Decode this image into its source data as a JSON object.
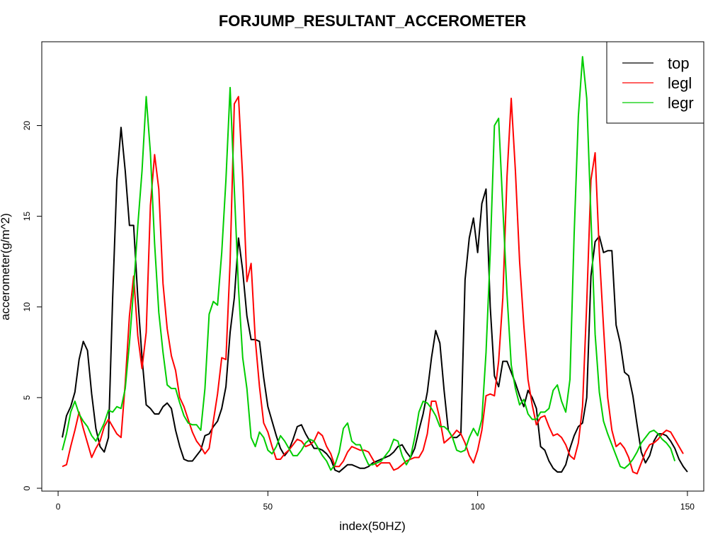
{
  "chart_data": {
    "type": "line",
    "title": "FORJUMP_RESULTANT_ACCEROMETER",
    "xlabel": "index(50HZ)",
    "ylabel": "accerometer(g/m^2)",
    "xlim": [
      1,
      149
    ],
    "ylim": [
      0,
      24
    ],
    "xticks": [
      0,
      50,
      100,
      150
    ],
    "yticks": [
      0,
      5,
      10,
      15,
      20
    ],
    "grid": false,
    "legend": {
      "position": "top-right"
    },
    "x_start": 1,
    "series": [
      {
        "name": "top",
        "color": "#000000",
        "values": [
          2.8,
          4.0,
          4.5,
          5.3,
          7.1,
          8.1,
          7.6,
          5.2,
          3.3,
          2.3,
          2.0,
          2.8,
          10.5,
          17.0,
          19.9,
          17.5,
          14.5,
          14.5,
          10.5,
          7.2,
          4.6,
          4.4,
          4.1,
          4.1,
          4.5,
          4.7,
          4.4,
          3.2,
          2.3,
          1.6,
          1.5,
          1.5,
          1.8,
          2.1,
          2.9,
          3.0,
          3.4,
          3.7,
          4.4,
          5.6,
          8.6,
          10.5,
          13.8,
          12.0,
          9.5,
          8.2,
          8.2,
          8.1,
          6.1,
          4.5,
          3.7,
          2.9,
          2.2,
          1.8,
          2.1,
          2.7,
          3.4,
          3.5,
          3.0,
          2.6,
          2.2,
          2.2,
          2.1,
          1.9,
          1.6,
          1.0,
          0.9,
          1.1,
          1.3,
          1.3,
          1.2,
          1.1,
          1.1,
          1.2,
          1.4,
          1.5,
          1.6,
          1.7,
          1.8,
          2.0,
          2.3,
          2.4,
          2.0,
          1.7,
          2.2,
          3.2,
          4.1,
          5.3,
          7.2,
          8.7,
          8.0,
          5.4,
          3.2,
          2.8,
          2.8,
          3.0,
          11.5,
          13.8,
          14.9,
          13.0,
          15.7,
          16.5,
          10.0,
          6.2,
          5.6,
          7.0,
          7.0,
          6.4,
          5.8,
          5.1,
          4.5,
          5.4,
          5.0,
          4.4,
          2.3,
          2.1,
          1.5,
          1.1,
          0.9,
          0.9,
          1.3,
          2.2,
          2.9,
          3.4,
          3.6,
          5.0,
          11.7,
          13.6,
          13.9,
          13.0,
          13.1,
          13.1,
          9.0,
          8.0,
          6.4,
          6.2,
          5.1,
          3.5,
          2.0,
          1.4,
          1.8,
          2.6,
          3.0,
          3.0,
          2.9,
          2.6,
          2.2,
          1.6,
          1.2,
          0.9
        ]
      },
      {
        "name": "legl",
        "color": "#ff0000",
        "values": [
          1.2,
          1.3,
          2.3,
          3.2,
          4.2,
          3.3,
          2.5,
          1.7,
          2.2,
          2.6,
          3.4,
          3.8,
          3.4,
          3.0,
          2.8,
          5.8,
          9.5,
          11.7,
          8.4,
          6.6,
          8.6,
          15.6,
          18.4,
          16.5,
          11.3,
          8.8,
          7.3,
          6.5,
          5.0,
          4.5,
          3.8,
          3.1,
          2.6,
          2.3,
          1.9,
          2.2,
          3.7,
          5.2,
          7.2,
          7.1,
          12.5,
          21.2,
          21.6,
          17.1,
          11.4,
          12.4,
          8.2,
          5.6,
          3.6,
          3.1,
          2.3,
          1.6,
          1.6,
          1.9,
          2.1,
          2.4,
          2.7,
          2.6,
          2.3,
          2.4,
          2.6,
          3.1,
          2.9,
          2.3,
          1.9,
          1.2,
          1.2,
          1.5,
          2.0,
          2.3,
          2.2,
          2.1,
          2.1,
          2.0,
          1.6,
          1.2,
          1.4,
          1.4,
          1.4,
          1.0,
          1.1,
          1.3,
          1.5,
          1.6,
          1.7,
          1.7,
          2.1,
          3.0,
          4.8,
          4.8,
          3.8,
          2.5,
          2.7,
          2.9,
          3.2,
          3.0,
          2.5,
          1.8,
          1.4,
          2.1,
          3.2,
          5.1,
          5.2,
          5.1,
          7.0,
          10.5,
          17.2,
          21.5,
          17.5,
          12.5,
          9.0,
          6.0,
          4.6,
          3.5,
          3.9,
          4.0,
          3.4,
          2.9,
          3.0,
          2.8,
          2.4,
          1.8,
          1.6,
          2.5,
          4.5,
          10.2,
          17.0,
          18.5,
          13.0,
          8.9,
          5.0,
          3.2,
          2.3,
          2.5,
          2.2,
          1.7,
          0.9,
          0.8,
          1.4,
          2.0,
          2.4,
          2.5,
          2.7,
          3.0,
          3.2,
          3.1,
          2.7,
          2.3,
          1.9
        ]
      },
      {
        "name": "legr",
        "color": "#00cd00",
        "values": [
          2.1,
          3.0,
          4.2,
          4.8,
          4.1,
          3.7,
          3.4,
          2.9,
          2.6,
          3.1,
          3.6,
          4.3,
          4.2,
          4.5,
          4.4,
          5.5,
          8.0,
          11.0,
          14.5,
          17.5,
          21.6,
          18.5,
          13.5,
          9.7,
          7.5,
          5.7,
          5.5,
          5.5,
          4.7,
          4.0,
          3.6,
          3.5,
          3.5,
          3.2,
          5.5,
          9.6,
          10.3,
          10.1,
          13.0,
          17.0,
          22.1,
          16.5,
          11.0,
          7.2,
          5.5,
          2.8,
          2.3,
          3.1,
          2.8,
          2.1,
          1.9,
          2.3,
          2.9,
          2.6,
          2.2,
          1.8,
          1.8,
          2.1,
          2.5,
          2.7,
          2.6,
          2.2,
          1.8,
          1.5,
          1.0,
          1.3,
          2.0,
          3.3,
          3.6,
          2.6,
          2.4,
          2.4,
          1.8,
          1.3,
          1.3,
          1.4,
          1.5,
          1.8,
          2.1,
          2.7,
          2.6,
          1.8,
          1.3,
          1.7,
          2.8,
          4.2,
          4.8,
          4.7,
          4.4,
          4.0,
          3.4,
          3.4,
          3.2,
          2.8,
          2.1,
          2.0,
          2.1,
          2.8,
          3.3,
          2.9,
          3.8,
          7.5,
          13.0,
          20.0,
          20.4,
          15.5,
          10.7,
          6.8,
          5.5,
          4.6,
          4.9,
          4.1,
          3.8,
          3.8,
          4.2,
          4.2,
          4.4,
          5.4,
          5.7,
          4.8,
          4.2,
          6.0,
          14.0,
          20.5,
          23.8,
          21.5,
          15.0,
          8.5,
          5.3,
          3.7,
          3.0,
          2.4,
          1.8,
          1.2,
          1.1,
          1.3,
          1.6,
          2.0,
          2.5,
          2.8,
          3.1,
          3.2,
          3.0,
          2.7,
          2.5,
          2.2,
          1.5
        ]
      }
    ]
  }
}
